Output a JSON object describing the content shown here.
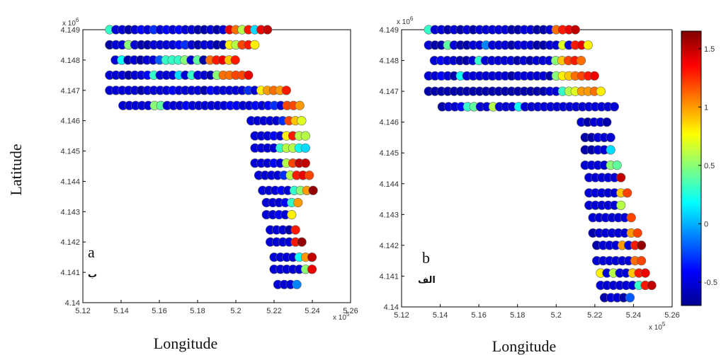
{
  "chart_data": [
    {
      "type": "scatter",
      "panel_label": "a",
      "panel_sublabel": "ب",
      "xlabel": "Longitude",
      "ylabel": "Latitude",
      "x_exponent": "x 10",
      "x_exponent_power": "5",
      "y_exponent": "x 10",
      "y_exponent_power": "6",
      "xlim": [
        5.12,
        5.26
      ],
      "ylim": [
        4.14,
        4.149
      ],
      "xticks": [
        "5.12",
        "5.14",
        "5.16",
        "5.18",
        "5.2",
        "5.22",
        "5.24",
        "5.26"
      ],
      "yticks": [
        "4.14",
        "4.141",
        "4.142",
        "4.143",
        "4.144",
        "4.145",
        "4.146",
        "4.147",
        "4.148",
        "4.149"
      ],
      "rows": [
        {
          "y": 4.149,
          "x0": 5.134,
          "dx": 0.0033,
          "values": [
            0.3,
            -0.5,
            -0.5,
            -0.6,
            -0.5,
            -0.4,
            -0.5,
            -0.3,
            -0.5,
            -0.4,
            -0.5,
            -0.4,
            -0.5,
            -0.5,
            -0.6,
            -0.6,
            -0.5,
            -0.6,
            -0.5,
            1.4,
            1.1,
            0.6,
            1.3,
            0.1,
            1.4,
            1.5
          ]
        },
        {
          "y": 4.1485,
          "x0": 5.134,
          "dx": 0.0033,
          "values": [
            -0.6,
            -0.5,
            -0.5,
            0.5,
            -0.5,
            -0.6,
            -0.6,
            -0.5,
            -0.5,
            -0.5,
            -0.5,
            -0.4,
            -0.3,
            -0.5,
            -0.6,
            -0.5,
            -0.5,
            -0.6,
            -0.6,
            0.8,
            0.6,
            1.2,
            1.3,
            0.8
          ]
        },
        {
          "y": 4.148,
          "x0": 5.137,
          "dx": 0.0033,
          "values": [
            -0.5,
            0.2,
            -0.6,
            -0.5,
            -0.6,
            -0.5,
            -0.5,
            -0.2,
            0.3,
            0.3,
            0.3,
            0.5,
            -0.5,
            0.4,
            -0.6,
            1.1,
            1.3,
            1.4,
            0.9,
            1.3
          ]
        },
        {
          "y": 4.1475,
          "x0": 5.134,
          "dx": 0.0033,
          "values": [
            -0.5,
            -0.5,
            -0.5,
            -0.6,
            -0.5,
            -0.5,
            -0.4,
            0.3,
            -0.5,
            -0.5,
            -0.5,
            0.1,
            -0.5,
            0.3,
            -0.5,
            -0.5,
            -0.6,
            0.5,
            1.1,
            1.1,
            1.2,
            1.2,
            1.4
          ]
        },
        {
          "y": 4.147,
          "x0": 5.134,
          "dx": 0.0033,
          "values": [
            -0.5,
            -0.5,
            -0.5,
            -0.5,
            -0.5,
            -0.6,
            -0.5,
            -0.5,
            -0.5,
            -0.5,
            -0.4,
            -0.5,
            -0.5,
            -0.5,
            -0.5,
            -0.6,
            -0.4,
            -0.5,
            -0.5,
            -0.5,
            -0.5,
            -0.5,
            -0.3,
            -0.5,
            0.8,
            1.0,
            1.1,
            1.0,
            1.3
          ]
        },
        {
          "y": 4.1465,
          "x0": 5.141,
          "dx": 0.0033,
          "values": [
            -0.5,
            -0.5,
            -0.5,
            -0.5,
            -0.5,
            0.5,
            0.4,
            -0.5,
            -0.5,
            -0.5,
            -0.4,
            -0.5,
            -0.5,
            -0.5,
            -0.5,
            -0.5,
            -0.5,
            -0.4,
            -0.4,
            -0.5,
            -0.5,
            -0.4,
            -0.5,
            -0.4,
            -0.3,
            -0.5,
            1.2,
            1.2,
            1.0
          ]
        },
        {
          "y": 4.146,
          "x0": 5.208,
          "dx": 0.0033,
          "values": [
            -0.5,
            -0.5,
            -0.5,
            -0.5,
            -0.5,
            -0.3,
            1.2,
            0.9,
            0.7
          ]
        },
        {
          "y": 4.1455,
          "x0": 5.21,
          "dx": 0.0033,
          "values": [
            -0.5,
            -0.5,
            -0.5,
            -0.4,
            -0.5,
            0.8,
            1.3,
            0.6,
            0.6
          ]
        },
        {
          "y": 4.1451,
          "x0": 5.21,
          "dx": 0.0033,
          "values": [
            -0.5,
            -0.5,
            -0.5,
            -0.5,
            0.3,
            0.6,
            0.6,
            0.2,
            0.1
          ]
        },
        {
          "y": 4.1446,
          "x0": 5.21,
          "dx": 0.0033,
          "values": [
            -0.5,
            -0.5,
            -0.5,
            -0.4,
            -0.5,
            0.6,
            1.2,
            1.5,
            1.5
          ]
        },
        {
          "y": 4.1442,
          "x0": 5.212,
          "dx": 0.0033,
          "values": [
            -0.5,
            -0.5,
            -0.5,
            -0.5,
            -0.3,
            0.6,
            1.3,
            1.4,
            1.2
          ]
        },
        {
          "y": 4.1437,
          "x0": 5.214,
          "dx": 0.0033,
          "values": [
            -0.5,
            -0.5,
            -0.5,
            -0.4,
            -0.5,
            0.3,
            0.5,
            1.0,
            1.6
          ]
        },
        {
          "y": 4.1433,
          "x0": 5.216,
          "dx": 0.0033,
          "values": [
            -0.5,
            -0.5,
            -0.5,
            -0.4,
            0.3,
            1.0
          ]
        },
        {
          "y": 4.1429,
          "x0": 5.216,
          "dx": 0.0033,
          "values": [
            -0.5,
            -0.5,
            -0.4,
            -0.5,
            0.8
          ]
        },
        {
          "y": 4.1424,
          "x0": 5.218,
          "dx": 0.0033,
          "values": [
            -0.5,
            -0.5,
            -0.5,
            -0.6,
            1.3
          ]
        },
        {
          "y": 4.142,
          "x0": 5.218,
          "dx": 0.0033,
          "values": [
            -0.5,
            -0.5,
            -0.5,
            -0.5,
            1.3,
            1.6
          ]
        },
        {
          "y": 4.1415,
          "x0": 5.22,
          "dx": 0.0033,
          "values": [
            -0.5,
            -0.5,
            -0.5,
            -0.5,
            0.2,
            1.0,
            1.5
          ]
        },
        {
          "y": 4.1411,
          "x0": 5.22,
          "dx": 0.0033,
          "values": [
            -0.5,
            -0.5,
            -0.5,
            -0.5,
            -0.5,
            0.5,
            1.4
          ]
        },
        {
          "y": 4.1406,
          "x0": 5.222,
          "dx": 0.0033,
          "values": [
            -0.5,
            -0.5,
            -0.5,
            -0.1
          ]
        }
      ]
    },
    {
      "type": "scatter",
      "panel_label": "b",
      "panel_sublabel": "الف",
      "xlabel": "Longitude",
      "x_exponent": "x 10",
      "x_exponent_power": "5",
      "y_exponent": "x 10",
      "y_exponent_power": "6",
      "xlim": [
        5.12,
        5.26
      ],
      "ylim": [
        4.14,
        4.149
      ],
      "xticks": [
        "5.12",
        "5.14",
        "5.16",
        "5.18",
        "5.2",
        "5.22",
        "5.24",
        "5.26"
      ],
      "yticks": [
        "4.14",
        "4.141",
        "4.142",
        "4.143",
        "4.144",
        "4.145",
        "4.146",
        "4.147",
        "4.148",
        "4.149"
      ],
      "rows": [
        {
          "y": 4.149,
          "x0": 5.134,
          "dx": 0.0033,
          "values": [
            0.3,
            -0.5,
            -0.5,
            -0.6,
            -0.5,
            -0.6,
            -0.5,
            -0.6,
            -0.5,
            -0.5,
            -0.5,
            -0.5,
            -0.5,
            -0.6,
            -0.6,
            -0.5,
            -0.5,
            -0.6,
            -0.6,
            -0.5,
            1.1,
            1.3,
            1.4,
            1.5
          ]
        },
        {
          "y": 4.1485,
          "x0": 5.134,
          "dx": 0.0033,
          "values": [
            -0.5,
            -0.6,
            -0.6,
            0.4,
            -0.5,
            -0.6,
            -0.6,
            -0.5,
            -0.5,
            -0.1,
            -0.5,
            -0.5,
            -0.5,
            -0.6,
            -0.5,
            -0.5,
            -0.5,
            -0.6,
            -0.6,
            -0.5,
            -0.5,
            0.7,
            -0.5,
            1.3,
            1.4,
            0.8
          ]
        },
        {
          "y": 4.148,
          "x0": 5.137,
          "dx": 0.0033,
          "values": [
            -0.5,
            -0.4,
            -0.5,
            -0.5,
            -0.6,
            -0.6,
            -0.5,
            0.3,
            -0.5,
            -0.5,
            -0.5,
            -0.5,
            -0.5,
            -0.6,
            -0.5,
            -0.6,
            -0.5,
            -0.5,
            -0.5,
            0.5,
            0.9,
            1.2,
            1.3,
            1.1
          ]
        },
        {
          "y": 4.1475,
          "x0": 5.134,
          "dx": 0.0033,
          "values": [
            -0.5,
            -0.5,
            -0.4,
            -0.5,
            -0.6,
            0.2,
            -0.5,
            -0.5,
            -0.5,
            -0.5,
            -0.5,
            -0.5,
            -0.5,
            -0.6,
            -0.5,
            -0.5,
            -0.5,
            -0.5,
            -0.5,
            -0.6,
            0.5,
            0.8,
            0.9,
            1.1,
            1.2,
            1.3,
            1.4
          ]
        },
        {
          "y": 4.147,
          "x0": 5.134,
          "dx": 0.0033,
          "values": [
            -0.6,
            -0.6,
            -0.6,
            -0.6,
            -0.6,
            -0.6,
            -0.6,
            -0.6,
            -0.6,
            -0.6,
            -0.6,
            -0.6,
            -0.6,
            -0.6,
            -0.6,
            -0.6,
            -0.6,
            -0.6,
            -0.6,
            -0.5,
            -0.5,
            0.3,
            0.6,
            0.7,
            1.0,
            1.0,
            1.1,
            0.8
          ]
        },
        {
          "y": 4.1465,
          "x0": 5.141,
          "dx": 0.0033,
          "values": [
            -0.6,
            -0.5,
            -0.5,
            -0.4,
            0.3,
            0.4,
            -0.5,
            -0.5,
            0.6,
            -0.5,
            -0.5,
            -0.5,
            0.2,
            -0.5,
            -0.5,
            -0.5,
            -0.5,
            -0.5,
            -0.5,
            -0.5,
            -0.5,
            -0.5,
            -0.5,
            -0.5,
            -0.5,
            -0.5,
            -0.5,
            -0.5
          ]
        },
        {
          "y": 4.146,
          "x0": 5.213,
          "dx": 0.0033,
          "values": [
            -0.5,
            -0.6,
            -0.5,
            -0.5,
            -0.6
          ]
        },
        {
          "y": 4.1455,
          "x0": 5.215,
          "dx": 0.0033,
          "values": [
            -0.6,
            -0.6,
            -0.5,
            -0.5,
            -0.5
          ]
        },
        {
          "y": 4.1451,
          "x0": 5.215,
          "dx": 0.0033,
          "values": [
            -0.6,
            -0.6,
            -0.5,
            -0.5,
            0.1
          ]
        },
        {
          "y": 4.1446,
          "x0": 5.215,
          "dx": 0.0033,
          "values": [
            -0.5,
            -0.5,
            -0.5,
            -0.5,
            0.5,
            0.4
          ]
        },
        {
          "y": 4.1442,
          "x0": 5.217,
          "dx": 0.0033,
          "values": [
            -0.5,
            -0.5,
            -0.5,
            -0.5,
            -0.5,
            1.5
          ]
        },
        {
          "y": 4.1437,
          "x0": 5.217,
          "dx": 0.0033,
          "values": [
            -0.5,
            -0.5,
            -0.5,
            -0.5,
            -0.5,
            0.9,
            1.2
          ]
        },
        {
          "y": 4.1433,
          "x0": 5.217,
          "dx": 0.0033,
          "values": [
            -0.5,
            -0.5,
            -0.5,
            -0.5,
            -0.5,
            0.6
          ]
        },
        {
          "y": 4.1429,
          "x0": 5.219,
          "dx": 0.0033,
          "values": [
            -0.5,
            -0.5,
            -0.5,
            -0.5,
            -0.5,
            -0.5,
            1.2
          ]
        },
        {
          "y": 4.1424,
          "x0": 5.219,
          "dx": 0.0033,
          "values": [
            -0.6,
            -0.5,
            -0.5,
            -0.5,
            -0.5,
            -0.5,
            1.0,
            1.2
          ]
        },
        {
          "y": 4.142,
          "x0": 5.221,
          "dx": 0.0033,
          "values": [
            -0.6,
            -0.5,
            -0.5,
            -0.5,
            1.0,
            -0.5,
            1.3,
            1.6
          ]
        },
        {
          "y": 4.1415,
          "x0": 5.221,
          "dx": 0.0033,
          "values": [
            -0.5,
            -0.5,
            -0.5,
            -0.5,
            -0.5,
            -0.5,
            1.1,
            1.2
          ]
        },
        {
          "y": 4.1411,
          "x0": 5.223,
          "dx": 0.0033,
          "values": [
            0.8,
            -0.5,
            0.6,
            -0.5,
            -0.5,
            0.9,
            1.3,
            1.4
          ]
        },
        {
          "y": 4.1407,
          "x0": 5.223,
          "dx": 0.0033,
          "values": [
            -0.5,
            -0.5,
            -0.5,
            -0.5,
            -0.5,
            -0.5,
            0.3,
            1.3,
            1.5
          ]
        },
        {
          "y": 4.1403,
          "x0": 5.225,
          "dx": 0.0033,
          "values": [
            -0.6,
            -0.5,
            -0.5,
            -0.6,
            -0.2
          ]
        }
      ]
    }
  ],
  "colorbar": {
    "ticks": [
      "-0.5",
      "0",
      "0.5",
      "1",
      "1.5"
    ],
    "range": [
      -0.7,
      1.65
    ],
    "colormap": "jet"
  }
}
